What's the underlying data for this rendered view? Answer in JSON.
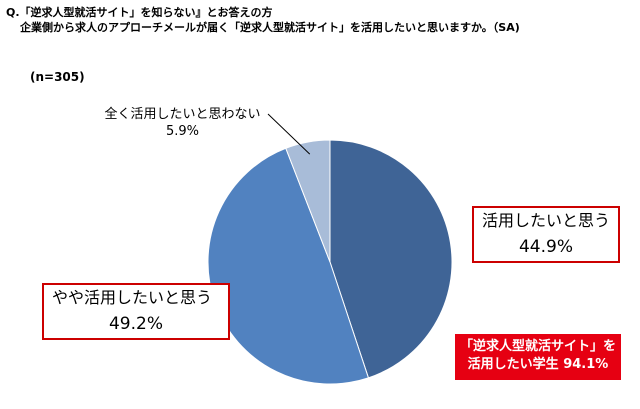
{
  "header": {
    "question_line1": "Q.「逆求人型就活サイト」を知らない』とお答えの方",
    "question_line2": "企業側から求人のアプローチメールが届く「逆求人型就活サイト」を活用したいと思いますか。（SA)",
    "sample_size": "(n=305)"
  },
  "chart_data": {
    "type": "pie",
    "title": "",
    "slices": [
      {
        "label": "活用したいと思う",
        "value": 44.9,
        "value_label": "44.9%",
        "color": "#3f6496"
      },
      {
        "label": "やや活用したいと思う",
        "value": 49.2,
        "value_label": "49.2%",
        "color": "#5182c0"
      },
      {
        "label": "全く活用したいと思わない",
        "value": 5.9,
        "value_label": "5.9%",
        "color": "#a8bcd8"
      }
    ],
    "start_angle_deg": 0,
    "direction": "clockwise",
    "label_box_color": "#cc0000"
  },
  "callout": {
    "line1": "「逆求人型就活サイト」を",
    "line2": "活用したい学生 94.1%",
    "color": "#e60012"
  }
}
